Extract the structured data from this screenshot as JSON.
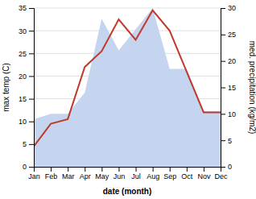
{
  "chart_data": {
    "type": "line",
    "categories": [
      "Jan",
      "Feb",
      "Mar",
      "Apr",
      "May",
      "Jun",
      "Jul",
      "Aug",
      "Sep",
      "Oct",
      "Nov",
      "Dec"
    ],
    "series": [
      {
        "type": "area",
        "axis": "y2",
        "color": "#c5d5f0",
        "values": [
          9.0,
          10.0,
          10.0,
          14.0,
          28.0,
          22.0,
          26.0,
          30.0,
          18.5,
          18.5,
          10.5,
          10.5
        ]
      },
      {
        "type": "line",
        "color": "#c0392b",
        "values": [
          4.5,
          9.5,
          10.5,
          22.0,
          25.5,
          32.5,
          28.0,
          34.5,
          30.0,
          21.0,
          12.0,
          12.0
        ]
      }
    ],
    "ylim": [
      0,
      35
    ],
    "yticks": [
      0,
      5,
      10,
      15,
      20,
      25,
      30,
      35
    ],
    "y2lim": [
      0,
      30
    ],
    "y2ticks": [
      0,
      5,
      10,
      15,
      20,
      25,
      30
    ],
    "xlabel": "date (month)",
    "ylabel": "max temp (C)",
    "y2label": "med. precipitation (kg/m2)",
    "grid": true
  }
}
